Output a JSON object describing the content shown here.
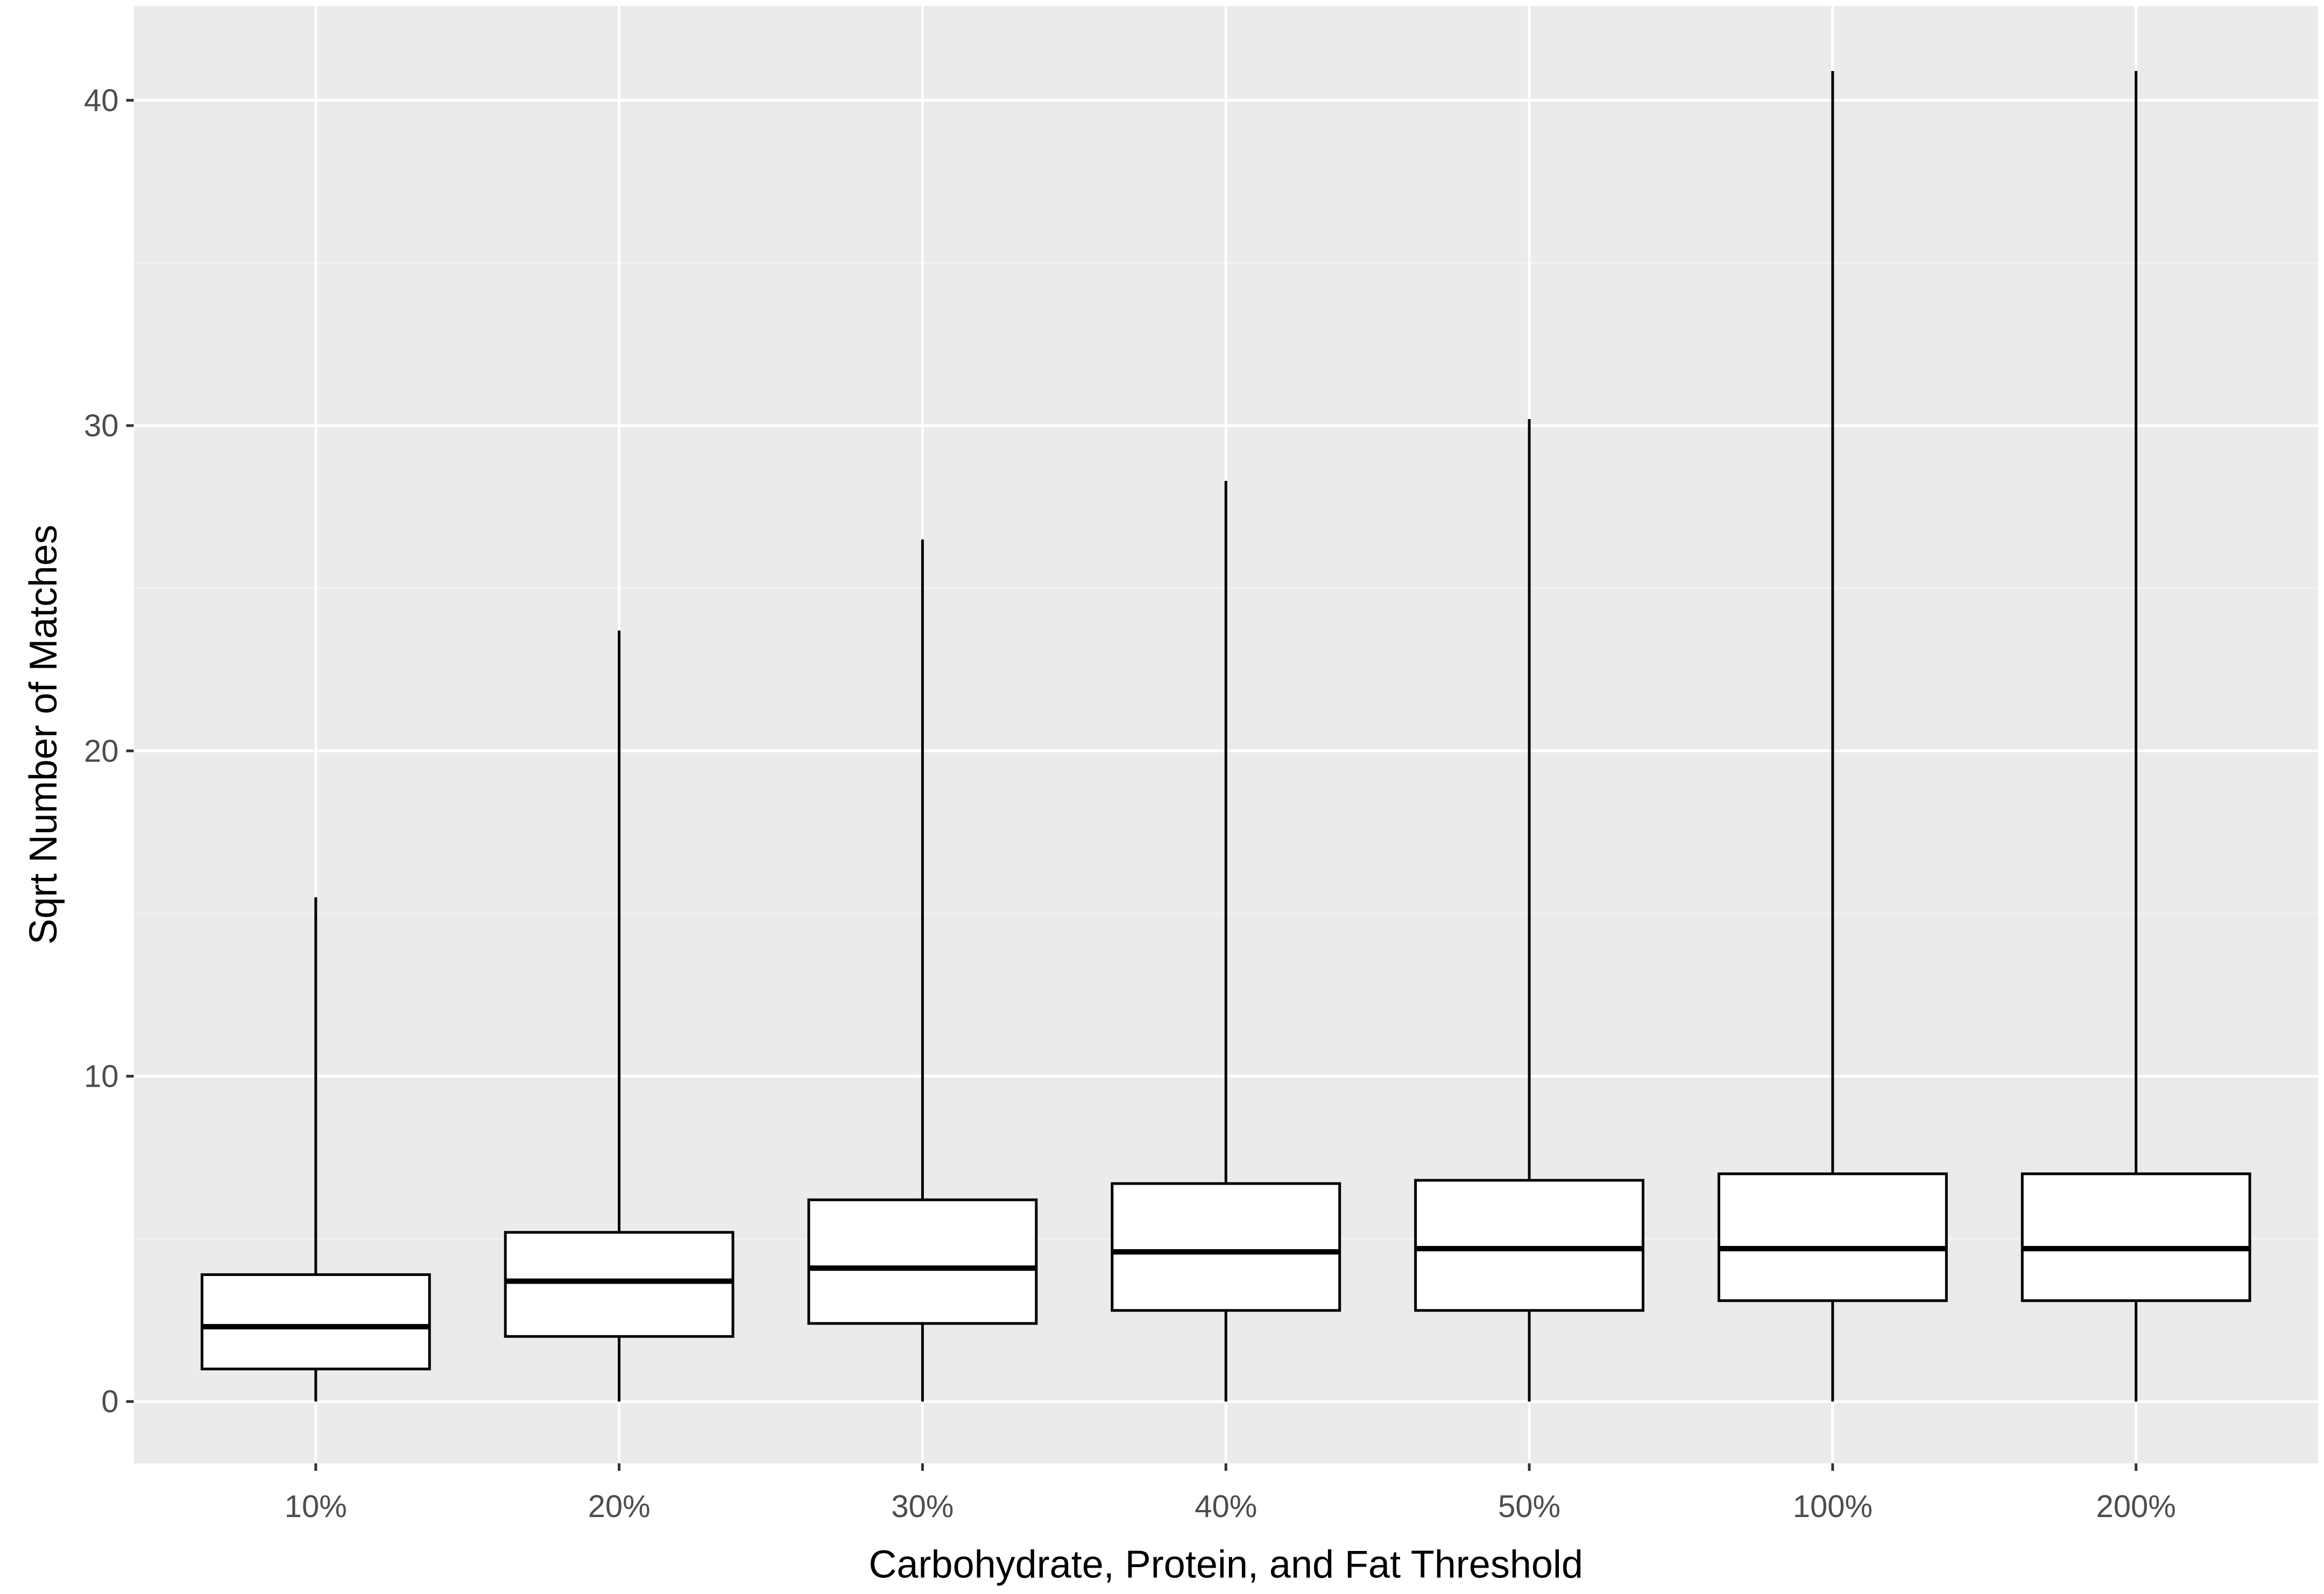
{
  "chart_data": {
    "type": "boxplot",
    "xlabel": "Carbohydrate, Protein, and Fat Threshold",
    "ylabel": "Sqrt Number of Matches",
    "ylim": [
      -1.9,
      42.9
    ],
    "yticks": [
      0,
      10,
      20,
      30,
      40
    ],
    "grid": true,
    "legend": "none",
    "categories": [
      "10%",
      "20%",
      "30%",
      "40%",
      "50%",
      "100%",
      "200%"
    ],
    "boxes": [
      {
        "category": "10%",
        "min": 0,
        "q1": 1.0,
        "median": 2.3,
        "q3": 3.9,
        "max": 15.5
      },
      {
        "category": "20%",
        "min": 0,
        "q1": 2.0,
        "median": 3.7,
        "q3": 5.2,
        "max": 23.7
      },
      {
        "category": "30%",
        "min": 0,
        "q1": 2.4,
        "median": 4.1,
        "q3": 6.2,
        "max": 26.5
      },
      {
        "category": "40%",
        "min": 0,
        "q1": 2.8,
        "median": 4.6,
        "q3": 6.7,
        "max": 28.3
      },
      {
        "category": "50%",
        "min": 0,
        "q1": 2.8,
        "median": 4.7,
        "q3": 6.8,
        "max": 30.2
      },
      {
        "category": "100%",
        "min": 0,
        "q1": 3.1,
        "median": 4.7,
        "q3": 7.0,
        "max": 40.9
      },
      {
        "category": "200%",
        "min": 0,
        "q1": 3.1,
        "median": 4.7,
        "q3": 7.0,
        "max": 40.9
      }
    ],
    "colors": {
      "panel_background": "#ebebeb",
      "grid_major": "#ffffff",
      "grid_minor": "#f5f5f5",
      "box_fill": "#ffffff",
      "box_outline": "#000000"
    }
  }
}
